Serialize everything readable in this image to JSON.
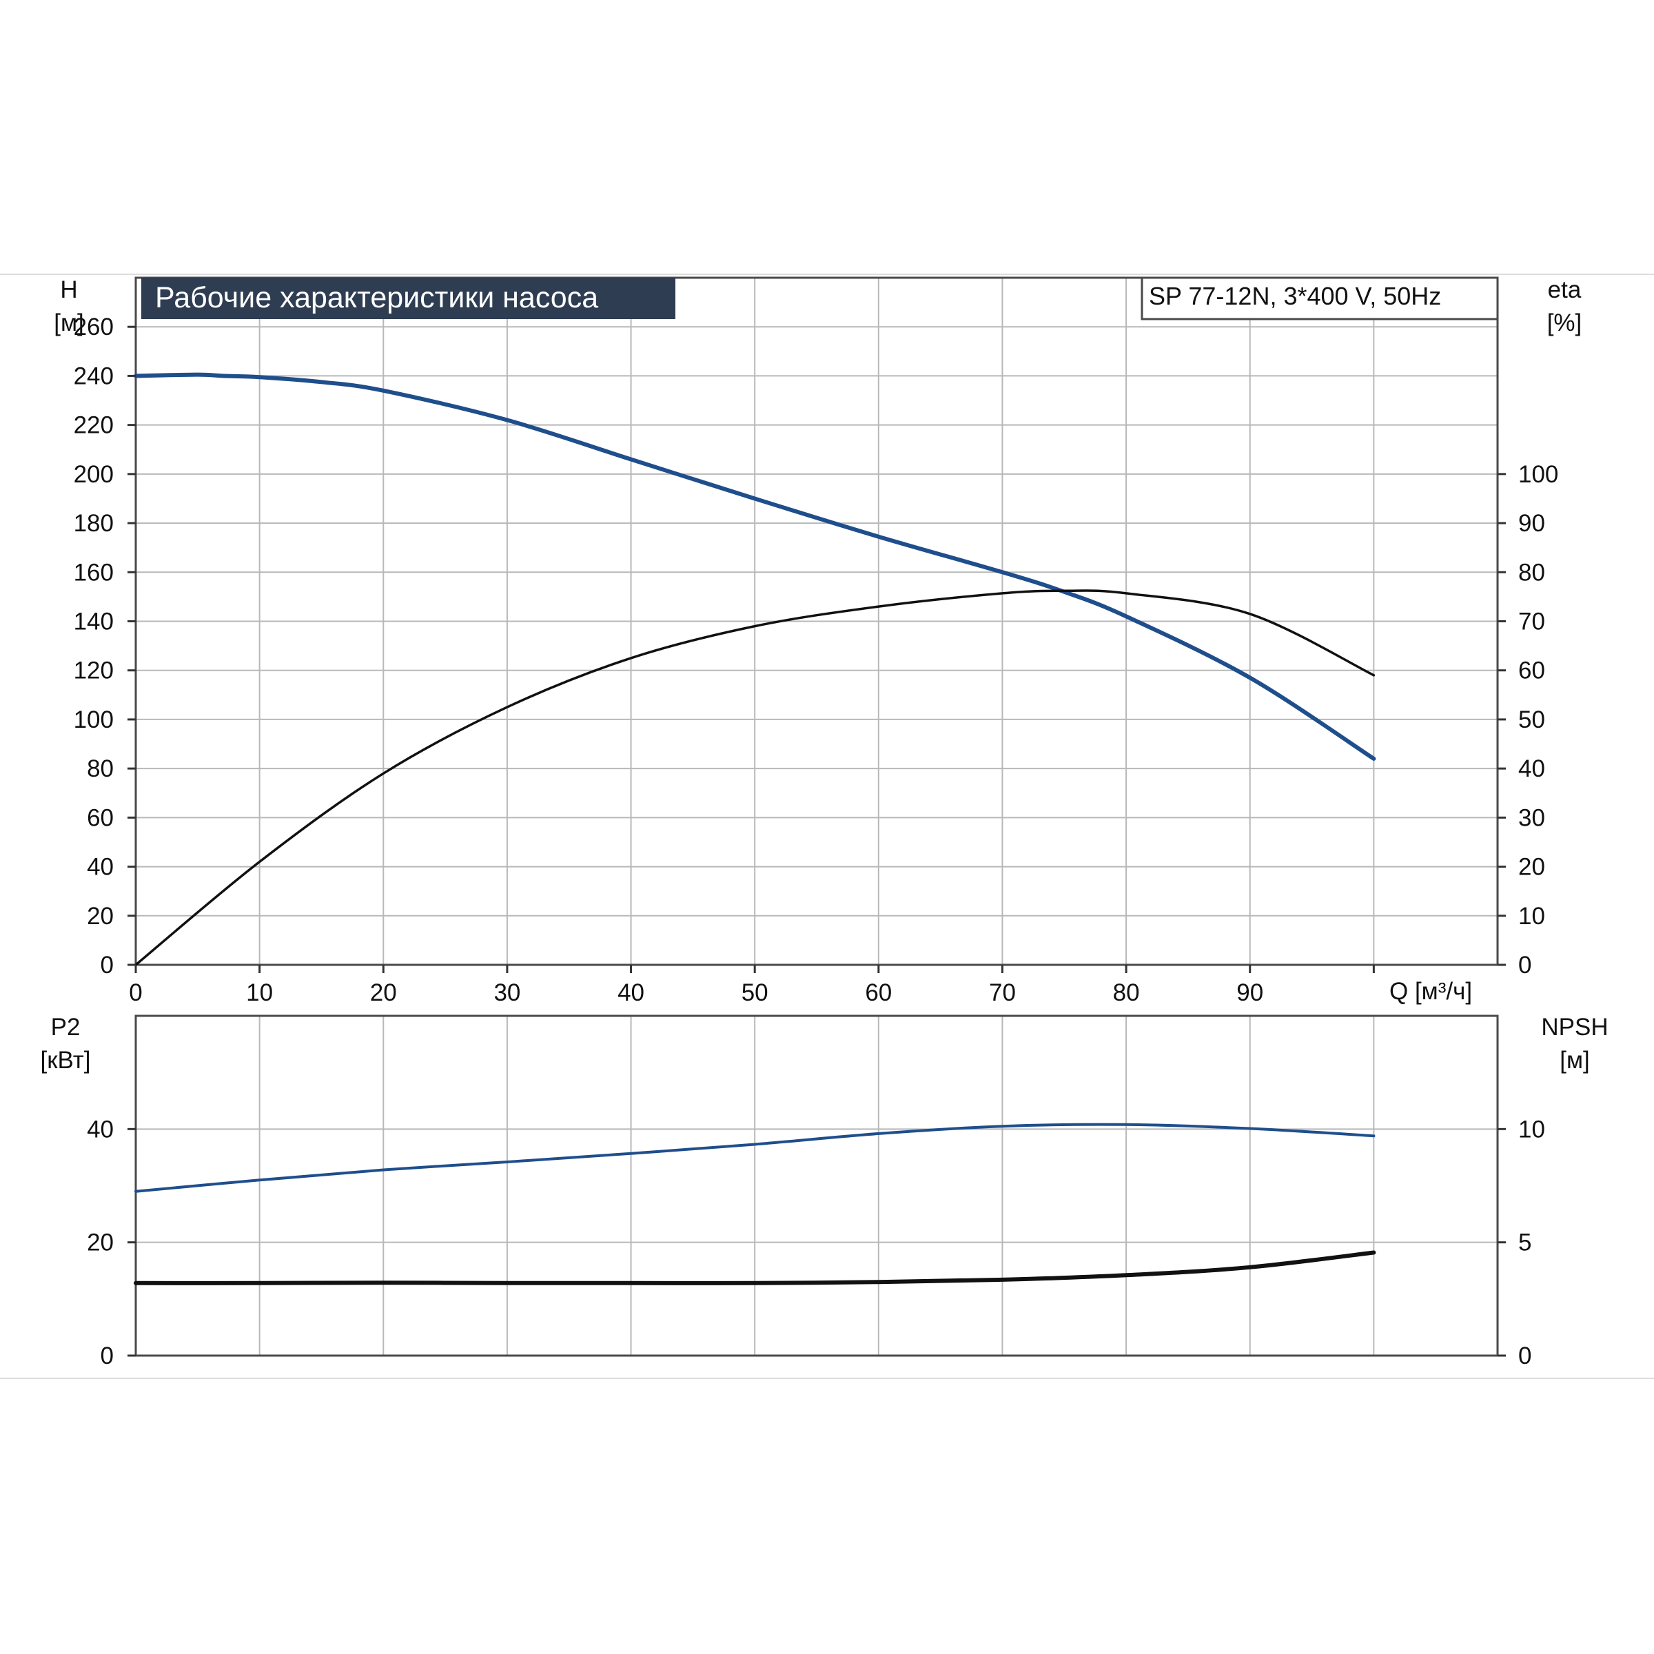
{
  "title": "Рабочие характеристики насоса",
  "subtitle": "SP 77-12N, 3*400 V, 50Hz",
  "colors": {
    "blue": "#1f4e8c",
    "black": "#111111",
    "title_bg": "#2e3d52",
    "title_fg": "#ffffff",
    "grid": "#b8b8b8"
  },
  "chart_data": [
    {
      "type": "line",
      "title": "Рабочие характеристики насоса",
      "subtitle": "SP 77-12N, 3*400 V, 50Hz",
      "xlabel": "Q [м³/ч]",
      "ylabel": "H\n[м]",
      "y2label": "eta\n[%]",
      "xlim": [
        0,
        110
      ],
      "ylim": [
        0,
        280
      ],
      "y2lim": [
        0,
        140
      ],
      "x_ticks": [
        "0",
        "10",
        "20",
        "30",
        "40",
        "50",
        "60",
        "70",
        "80",
        "90"
      ],
      "y_ticks": [
        "0",
        "20",
        "40",
        "60",
        "80",
        "100",
        "120",
        "140",
        "160",
        "180",
        "200",
        "220",
        "240",
        "260"
      ],
      "y2_ticks": [
        "0",
        "10",
        "20",
        "30",
        "40",
        "50",
        "60",
        "70",
        "80",
        "90",
        "100"
      ],
      "grid": true,
      "series": [
        {
          "axis": "left",
          "color": "#1f4e8c",
          "x": [
            0,
            5,
            7,
            10,
            15,
            20,
            30,
            40,
            50,
            60,
            70,
            75,
            80,
            90,
            100
          ],
          "y": [
            240,
            240.5,
            240,
            239.5,
            237.5,
            234,
            222,
            206,
            190,
            174.5,
            160,
            152,
            142,
            117,
            84
          ]
        },
        {
          "axis": "right",
          "color": "#111111",
          "x": [
            0,
            10,
            20,
            30,
            40,
            50,
            60,
            70,
            75,
            80,
            90,
            100
          ],
          "y": [
            0,
            21,
            39,
            52.5,
            62.5,
            69,
            73,
            75.7,
            76.2,
            75.7,
            71.5,
            59
          ]
        }
      ]
    },
    {
      "type": "line",
      "xlim": [
        0,
        110
      ],
      "ylim": [
        0,
        60
      ],
      "y2lim": [
        0,
        15
      ],
      "ylabel": "P2\n[кВт]",
      "y2label": "NPSH\n[м]",
      "y_ticks": [
        "0",
        "20",
        "40"
      ],
      "y2_ticks": [
        "0",
        "5",
        "10"
      ],
      "grid": true,
      "series": [
        {
          "axis": "left",
          "color": "#1f4e8c",
          "x": [
            0,
            10,
            20,
            30,
            40,
            50,
            60,
            70,
            80,
            90,
            100
          ],
          "y": [
            29,
            31,
            32.8,
            34.2,
            35.7,
            37.3,
            39.2,
            40.5,
            40.8,
            40.1,
            38.8
          ]
        },
        {
          "axis": "right",
          "color": "#111111",
          "x": [
            0,
            10,
            20,
            30,
            40,
            50,
            60,
            70,
            80,
            90,
            100
          ],
          "y": [
            3.2,
            3.2,
            3.22,
            3.2,
            3.2,
            3.2,
            3.25,
            3.35,
            3.55,
            3.9,
            4.55
          ]
        }
      ]
    }
  ]
}
